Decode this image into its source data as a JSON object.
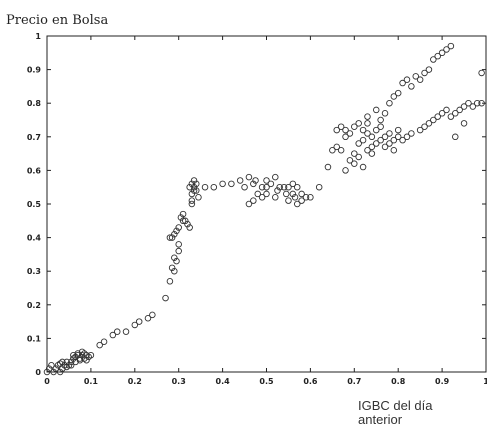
{
  "chart_data": {
    "type": "scatter",
    "title": "",
    "ylabel": "Precio en Bolsa",
    "xlabel_lines": [
      "IGBC del día",
      "anterior"
    ],
    "xlim": [
      0,
      1
    ],
    "ylim": [
      0,
      1
    ],
    "grid": false,
    "xticks": [
      0,
      0.1,
      0.2,
      0.3,
      0.4,
      0.5,
      0.6,
      0.7,
      0.8,
      0.9,
      1
    ],
    "xtick_labels": [
      "0",
      "0.1",
      "0.2",
      "0.3",
      "0.4",
      "0.5",
      "0.6",
      "0.7",
      "0.8",
      "0.9",
      "1"
    ],
    "yticks": [
      0,
      0.1,
      0.2,
      0.3,
      0.4,
      0.5,
      0.6,
      0.7,
      0.8,
      0.9,
      1
    ],
    "ytick_labels": [
      "0",
      "0.1",
      "0.2",
      "0.3",
      "0.4",
      "0.5",
      "0.6",
      "0.7",
      "0.8",
      "0.9",
      "1"
    ],
    "points": [
      [
        0.0,
        0.0
      ],
      [
        0.005,
        0.01
      ],
      [
        0.01,
        0.02
      ],
      [
        0.015,
        0.0
      ],
      [
        0.02,
        0.01
      ],
      [
        0.025,
        0.02
      ],
      [
        0.03,
        0.0
      ],
      [
        0.035,
        0.01
      ],
      [
        0.04,
        0.02
      ],
      [
        0.045,
        0.03
      ],
      [
        0.05,
        0.02
      ],
      [
        0.055,
        0.03
      ],
      [
        0.06,
        0.04
      ],
      [
        0.065,
        0.03
      ],
      [
        0.07,
        0.05
      ],
      [
        0.075,
        0.04
      ],
      [
        0.08,
        0.05
      ],
      [
        0.085,
        0.04
      ],
      [
        0.09,
        0.05
      ],
      [
        0.095,
        0.045
      ],
      [
        0.1,
        0.05
      ],
      [
        0.03,
        0.025
      ],
      [
        0.045,
        0.015
      ],
      [
        0.065,
        0.045
      ],
      [
        0.075,
        0.035
      ],
      [
        0.085,
        0.055
      ],
      [
        0.09,
        0.035
      ],
      [
        0.07,
        0.055
      ],
      [
        0.055,
        0.02
      ],
      [
        0.035,
        0.03
      ],
      [
        0.08,
        0.06
      ],
      [
        0.06,
        0.05
      ],
      [
        0.13,
        0.09
      ],
      [
        0.16,
        0.12
      ],
      [
        0.18,
        0.12
      ],
      [
        0.2,
        0.14
      ],
      [
        0.21,
        0.15
      ],
      [
        0.23,
        0.16
      ],
      [
        0.24,
        0.17
      ],
      [
        0.15,
        0.11
      ],
      [
        0.12,
        0.08
      ],
      [
        0.27,
        0.22
      ],
      [
        0.28,
        0.27
      ],
      [
        0.285,
        0.31
      ],
      [
        0.29,
        0.3
      ],
      [
        0.29,
        0.34
      ],
      [
        0.295,
        0.33
      ],
      [
        0.3,
        0.36
      ],
      [
        0.3,
        0.38
      ],
      [
        0.285,
        0.4
      ],
      [
        0.29,
        0.41
      ],
      [
        0.295,
        0.42
      ],
      [
        0.28,
        0.4
      ],
      [
        0.3,
        0.43
      ],
      [
        0.305,
        0.46
      ],
      [
        0.31,
        0.47
      ],
      [
        0.315,
        0.45
      ],
      [
        0.32,
        0.44
      ],
      [
        0.325,
        0.43
      ],
      [
        0.31,
        0.45
      ],
      [
        0.33,
        0.5
      ],
      [
        0.33,
        0.53
      ],
      [
        0.335,
        0.55
      ],
      [
        0.34,
        0.56
      ],
      [
        0.335,
        0.57
      ],
      [
        0.33,
        0.56
      ],
      [
        0.34,
        0.54
      ],
      [
        0.345,
        0.52
      ],
      [
        0.33,
        0.51
      ],
      [
        0.325,
        0.55
      ],
      [
        0.335,
        0.54
      ],
      [
        0.36,
        0.55
      ],
      [
        0.38,
        0.55
      ],
      [
        0.4,
        0.56
      ],
      [
        0.42,
        0.56
      ],
      [
        0.44,
        0.57
      ],
      [
        0.45,
        0.55
      ],
      [
        0.46,
        0.58
      ],
      [
        0.46,
        0.5
      ],
      [
        0.47,
        0.51
      ],
      [
        0.47,
        0.56
      ],
      [
        0.475,
        0.57
      ],
      [
        0.48,
        0.53
      ],
      [
        0.49,
        0.55
      ],
      [
        0.49,
        0.52
      ],
      [
        0.5,
        0.53
      ],
      [
        0.5,
        0.55
      ],
      [
        0.51,
        0.56
      ],
      [
        0.5,
        0.57
      ],
      [
        0.52,
        0.52
      ],
      [
        0.52,
        0.58
      ],
      [
        0.525,
        0.54
      ],
      [
        0.53,
        0.55
      ],
      [
        0.54,
        0.55
      ],
      [
        0.545,
        0.53
      ],
      [
        0.55,
        0.55
      ],
      [
        0.55,
        0.51
      ],
      [
        0.56,
        0.53
      ],
      [
        0.56,
        0.56
      ],
      [
        0.565,
        0.52
      ],
      [
        0.57,
        0.55
      ],
      [
        0.57,
        0.5
      ],
      [
        0.58,
        0.53
      ],
      [
        0.58,
        0.51
      ],
      [
        0.59,
        0.52
      ],
      [
        0.6,
        0.52
      ],
      [
        0.62,
        0.55
      ],
      [
        0.64,
        0.61
      ],
      [
        0.65,
        0.66
      ],
      [
        0.66,
        0.67
      ],
      [
        0.67,
        0.66
      ],
      [
        0.68,
        0.7
      ],
      [
        0.68,
        0.72
      ],
      [
        0.69,
        0.71
      ],
      [
        0.7,
        0.73
      ],
      [
        0.7,
        0.65
      ],
      [
        0.71,
        0.64
      ],
      [
        0.71,
        0.68
      ],
      [
        0.72,
        0.69
      ],
      [
        0.72,
        0.72
      ],
      [
        0.73,
        0.71
      ],
      [
        0.73,
        0.74
      ],
      [
        0.74,
        0.7
      ],
      [
        0.74,
        0.67
      ],
      [
        0.75,
        0.68
      ],
      [
        0.75,
        0.72
      ],
      [
        0.76,
        0.69
      ],
      [
        0.76,
        0.73
      ],
      [
        0.77,
        0.7
      ],
      [
        0.77,
        0.67
      ],
      [
        0.78,
        0.68
      ],
      [
        0.78,
        0.71
      ],
      [
        0.79,
        0.66
      ],
      [
        0.79,
        0.69
      ],
      [
        0.8,
        0.7
      ],
      [
        0.8,
        0.72
      ],
      [
        0.81,
        0.69
      ],
      [
        0.68,
        0.6
      ],
      [
        0.69,
        0.63
      ],
      [
        0.7,
        0.62
      ],
      [
        0.72,
        0.61
      ],
      [
        0.73,
        0.66
      ],
      [
        0.74,
        0.65
      ],
      [
        0.66,
        0.72
      ],
      [
        0.67,
        0.73
      ],
      [
        0.71,
        0.74
      ],
      [
        0.73,
        0.76
      ],
      [
        0.75,
        0.78
      ],
      [
        0.76,
        0.75
      ],
      [
        0.77,
        0.77
      ],
      [
        0.78,
        0.8
      ],
      [
        0.79,
        0.82
      ],
      [
        0.8,
        0.83
      ],
      [
        0.81,
        0.86
      ],
      [
        0.82,
        0.87
      ],
      [
        0.83,
        0.85
      ],
      [
        0.84,
        0.88
      ],
      [
        0.85,
        0.87
      ],
      [
        0.86,
        0.89
      ],
      [
        0.87,
        0.9
      ],
      [
        0.88,
        0.93
      ],
      [
        0.89,
        0.94
      ],
      [
        0.9,
        0.95
      ],
      [
        0.91,
        0.96
      ],
      [
        0.92,
        0.97
      ],
      [
        0.82,
        0.7
      ],
      [
        0.83,
        0.71
      ],
      [
        0.85,
        0.72
      ],
      [
        0.86,
        0.73
      ],
      [
        0.87,
        0.74
      ],
      [
        0.88,
        0.75
      ],
      [
        0.89,
        0.76
      ],
      [
        0.9,
        0.77
      ],
      [
        0.91,
        0.78
      ],
      [
        0.92,
        0.76
      ],
      [
        0.93,
        0.77
      ],
      [
        0.94,
        0.78
      ],
      [
        0.95,
        0.79
      ],
      [
        0.96,
        0.8
      ],
      [
        0.97,
        0.79
      ],
      [
        0.98,
        0.8
      ],
      [
        0.99,
        0.8
      ],
      [
        0.99,
        0.89
      ],
      [
        0.93,
        0.7
      ],
      [
        0.95,
        0.74
      ]
    ]
  }
}
